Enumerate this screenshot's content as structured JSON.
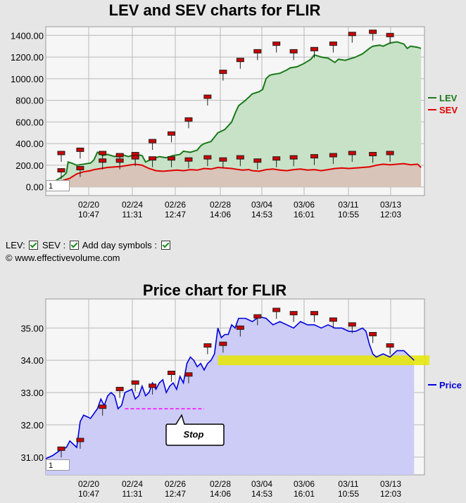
{
  "top_title": "LEV and SEV charts for FLIR",
  "bottom_title": "Price chart for FLIR",
  "legend_controls": {
    "lev_label": "LEV:",
    "sev_label": "SEV :",
    "day_label": "Add day symbols :"
  },
  "copyright": "© www.effectivevolume.com",
  "top_input_value": "1",
  "bottom_input_value": "1",
  "colors": {
    "lev": "#1a7a1a",
    "lev_fill": "#c8e2c8",
    "sev": "#e00000",
    "sev_fill": "#d8c4b8",
    "price": "#0000dd",
    "price_fill": "#ccccf6",
    "band": "#e6e600",
    "stop": "#ff00ff",
    "marker": "#cc0000"
  },
  "chart_data": [
    {
      "type": "line",
      "title": "LEV and SEV charts for FLIR",
      "x_tick_labels": [
        [
          "02/20",
          "10:47"
        ],
        [
          "02/24",
          "11:31"
        ],
        [
          "02/26",
          "12:47"
        ],
        [
          "02/28",
          "14:06"
        ],
        [
          "03/04",
          "14:53"
        ],
        [
          "03/06",
          "16:01"
        ],
        [
          "03/11",
          "10:55"
        ],
        [
          "03/13",
          "12:03"
        ]
      ],
      "y_tick_labels": [
        "1400.00",
        "1200.00",
        "1000.00",
        "800.00",
        "600.00",
        "400.00",
        "200.00",
        "0.00"
      ],
      "ylim": [
        -80,
        1480
      ],
      "series": [
        {
          "name": "LEV",
          "points": [
            [
              0,
              0
            ],
            [
              6,
              60
            ],
            [
              10,
              100
            ],
            [
              12,
              130
            ],
            [
              13,
              230
            ],
            [
              15,
              220
            ],
            [
              18,
              200
            ],
            [
              22,
              210
            ],
            [
              26,
              220
            ],
            [
              28,
              250
            ],
            [
              30,
              320
            ],
            [
              33,
              290
            ],
            [
              36,
              300
            ],
            [
              40,
              280
            ],
            [
              44,
              300
            ],
            [
              48,
              280
            ],
            [
              52,
              300
            ],
            [
              56,
              290
            ],
            [
              58,
              230
            ],
            [
              62,
              260
            ],
            [
              66,
              280
            ],
            [
              70,
              270
            ],
            [
              74,
              290
            ],
            [
              78,
              300
            ],
            [
              80,
              330
            ],
            [
              84,
              320
            ],
            [
              88,
              340
            ],
            [
              90,
              380
            ],
            [
              92,
              400
            ],
            [
              96,
              420
            ],
            [
              100,
              500
            ],
            [
              104,
              530
            ],
            [
              108,
              600
            ],
            [
              110,
              680
            ],
            [
              112,
              750
            ],
            [
              116,
              800
            ],
            [
              120,
              860
            ],
            [
              124,
              880
            ],
            [
              126,
              900
            ],
            [
              128,
              1000
            ],
            [
              130,
              1030
            ],
            [
              132,
              1040
            ],
            [
              136,
              1050
            ],
            [
              140,
              1080
            ],
            [
              142,
              1100
            ],
            [
              146,
              1110
            ],
            [
              150,
              1140
            ],
            [
              154,
              1180
            ],
            [
              156,
              1220
            ],
            [
              160,
              1200
            ],
            [
              164,
              1190
            ],
            [
              168,
              1150
            ],
            [
              170,
              1180
            ],
            [
              174,
              1170
            ],
            [
              176,
              1180
            ],
            [
              180,
              1200
            ],
            [
              184,
              1230
            ],
            [
              188,
              1280
            ],
            [
              190,
              1300
            ],
            [
              194,
              1310
            ],
            [
              196,
              1300
            ],
            [
              200,
              1330
            ],
            [
              204,
              1340
            ],
            [
              208,
              1320
            ],
            [
              210,
              1280
            ],
            [
              212,
              1300
            ],
            [
              216,
              1290
            ],
            [
              218,
              1280
            ]
          ]
        },
        {
          "name": "SEV",
          "points": [
            [
              0,
              0
            ],
            [
              6,
              30
            ],
            [
              10,
              60
            ],
            [
              14,
              80
            ],
            [
              18,
              120
            ],
            [
              22,
              140
            ],
            [
              26,
              150
            ],
            [
              28,
              160
            ],
            [
              32,
              170
            ],
            [
              36,
              180
            ],
            [
              40,
              185
            ],
            [
              44,
              190
            ],
            [
              48,
              200
            ],
            [
              52,
              210
            ],
            [
              56,
              200
            ],
            [
              60,
              170
            ],
            [
              64,
              150
            ],
            [
              68,
              145
            ],
            [
              72,
              150
            ],
            [
              76,
              155
            ],
            [
              80,
              150
            ],
            [
              84,
              160
            ],
            [
              88,
              155
            ],
            [
              92,
              170
            ],
            [
              96,
              165
            ],
            [
              100,
              180
            ],
            [
              104,
              175
            ],
            [
              108,
              170
            ],
            [
              110,
              165
            ],
            [
              114,
              155
            ],
            [
              118,
              160
            ],
            [
              120,
              150
            ],
            [
              124,
              145
            ],
            [
              128,
              160
            ],
            [
              132,
              165
            ],
            [
              136,
              155
            ],
            [
              140,
              150
            ],
            [
              144,
              160
            ],
            [
              148,
              165
            ],
            [
              152,
              155
            ],
            [
              156,
              160
            ],
            [
              160,
              150
            ],
            [
              164,
              160
            ],
            [
              168,
              170
            ],
            [
              172,
              175
            ],
            [
              176,
              170
            ],
            [
              180,
              175
            ],
            [
              184,
              180
            ],
            [
              188,
              185
            ],
            [
              192,
              200
            ],
            [
              196,
              210
            ],
            [
              200,
              205
            ],
            [
              204,
              210
            ],
            [
              208,
              215
            ],
            [
              212,
              205
            ],
            [
              216,
              210
            ],
            [
              218,
              180
            ]
          ]
        }
      ],
      "day_markers": {
        "lev": [
          [
            9,
            310
          ],
          [
            20,
            340
          ],
          [
            33,
            310
          ],
          [
            43,
            290
          ],
          [
            52,
            300
          ],
          [
            62,
            420
          ],
          [
            73,
            490
          ],
          [
            83,
            620
          ],
          [
            94,
            830
          ],
          [
            103,
            1060
          ],
          [
            113,
            1170
          ],
          [
            123,
            1250
          ],
          [
            134,
            1320
          ],
          [
            144,
            1250
          ],
          [
            156,
            1270
          ],
          [
            167,
            1320
          ],
          [
            178,
            1410
          ],
          [
            190,
            1430
          ],
          [
            200,
            1400
          ]
        ],
        "sev": [
          [
            9,
            150
          ],
          [
            20,
            170
          ],
          [
            33,
            240
          ],
          [
            43,
            240
          ],
          [
            52,
            270
          ],
          [
            62,
            260
          ],
          [
            73,
            260
          ],
          [
            83,
            250
          ],
          [
            94,
            270
          ],
          [
            103,
            250
          ],
          [
            113,
            270
          ],
          [
            123,
            240
          ],
          [
            134,
            260
          ],
          [
            144,
            270
          ],
          [
            156,
            280
          ],
          [
            167,
            290
          ],
          [
            178,
            310
          ],
          [
            190,
            300
          ],
          [
            200,
            310
          ]
        ]
      }
    },
    {
      "type": "line",
      "title": "Price chart for FLIR",
      "x_tick_labels": [
        [
          "02/20",
          "10:47"
        ],
        [
          "02/24",
          "11:31"
        ],
        [
          "02/26",
          "12:47"
        ],
        [
          "02/28",
          "14:06"
        ],
        [
          "03/04",
          "14:53"
        ],
        [
          "03/06",
          "16:01"
        ],
        [
          "03/11",
          "10:55"
        ],
        [
          "03/13",
          "12:03"
        ]
      ],
      "y_tick_labels": [
        "35.00",
        "34.00",
        "33.00",
        "32.00",
        "31.00"
      ],
      "ylim": [
        30.45,
        35.9
      ],
      "series": [
        {
          "name": "Price",
          "points": [
            [
              0,
              30.95
            ],
            [
              4,
              31.05
            ],
            [
              8,
              31.2
            ],
            [
              12,
              31.3
            ],
            [
              14,
              31.5
            ],
            [
              18,
              31.3
            ],
            [
              20,
              32.1
            ],
            [
              22,
              32.3
            ],
            [
              26,
              32.2
            ],
            [
              30,
              32.5
            ],
            [
              32,
              32.8
            ],
            [
              34,
              32.6
            ],
            [
              36,
              32.9
            ],
            [
              38,
              33.0
            ],
            [
              40,
              32.9
            ],
            [
              42,
              32.5
            ],
            [
              44,
              32.6
            ],
            [
              46,
              33.0
            ],
            [
              50,
              33.1
            ],
            [
              52,
              32.8
            ],
            [
              54,
              32.9
            ],
            [
              56,
              33.2
            ],
            [
              58,
              32.9
            ],
            [
              60,
              33.0
            ],
            [
              62,
              33.3
            ],
            [
              64,
              33.1
            ],
            [
              66,
              33.3
            ],
            [
              68,
              33.4
            ],
            [
              70,
              33.0
            ],
            [
              72,
              33.2
            ],
            [
              74,
              33.3
            ],
            [
              76,
              33.1
            ],
            [
              78,
              33.5
            ],
            [
              80,
              33.3
            ],
            [
              82,
              33.9
            ],
            [
              84,
              34.1
            ],
            [
              86,
              34.0
            ],
            [
              88,
              33.8
            ],
            [
              90,
              33.9
            ],
            [
              92,
              33.7
            ],
            [
              94,
              33.9
            ],
            [
              96,
              34.0
            ],
            [
              98,
              34.2
            ],
            [
              100,
              35.0
            ],
            [
              102,
              34.7
            ],
            [
              104,
              34.8
            ],
            [
              106,
              34.8
            ],
            [
              108,
              35.1
            ],
            [
              110,
              35.0
            ],
            [
              112,
              35.3
            ],
            [
              116,
              35.3
            ],
            [
              120,
              35.2
            ],
            [
              124,
              35.35
            ],
            [
              128,
              35.3
            ],
            [
              132,
              35.1
            ],
            [
              136,
              35.2
            ],
            [
              140,
              35.1
            ],
            [
              144,
              35.0
            ],
            [
              148,
              35.2
            ],
            [
              152,
              35.1
            ],
            [
              156,
              35.1
            ],
            [
              160,
              35.0
            ],
            [
              164,
              35.1
            ],
            [
              168,
              35.0
            ],
            [
              172,
              35.0
            ],
            [
              176,
              34.9
            ],
            [
              180,
              34.9
            ],
            [
              184,
              35.0
            ],
            [
              186,
              34.9
            ],
            [
              188,
              34.5
            ],
            [
              190,
              34.2
            ],
            [
              192,
              34.1
            ],
            [
              196,
              34.2
            ],
            [
              200,
              34.1
            ],
            [
              204,
              34.3
            ],
            [
              208,
              34.3
            ],
            [
              212,
              34.1
            ],
            [
              214,
              34.0
            ]
          ]
        }
      ],
      "day_markers": [
        [
          9,
          31.25
        ],
        [
          20,
          31.52
        ],
        [
          33,
          32.55
        ],
        [
          43,
          33.1
        ],
        [
          52,
          33.3
        ],
        [
          62,
          33.2
        ],
        [
          73,
          33.6
        ],
        [
          83,
          33.55
        ],
        [
          94,
          34.45
        ],
        [
          103,
          34.5
        ],
        [
          113,
          35.0
        ],
        [
          123,
          35.35
        ],
        [
          134,
          35.55
        ],
        [
          144,
          35.45
        ],
        [
          156,
          35.45
        ],
        [
          167,
          35.25
        ],
        [
          178,
          35.1
        ],
        [
          190,
          34.8
        ],
        [
          200,
          34.45
        ]
      ],
      "support_band": [
        33.85,
        34.15
      ],
      "stop_level": 32.5,
      "stop_label": "Stop"
    }
  ]
}
